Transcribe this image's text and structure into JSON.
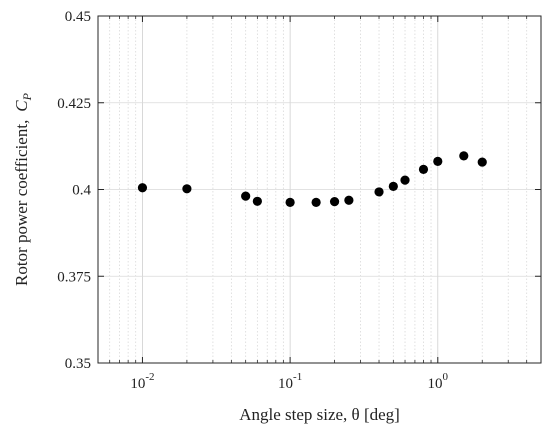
{
  "chart_data": {
    "type": "scatter",
    "xlabel": "Angle step size, θ [deg]",
    "ylabel": "Rotor power coefficient,  C_P",
    "ylabel_main": "Rotor power coefficient,",
    "ylabel_symbol": "C",
    "ylabel_subscript": "P",
    "x_scale": "log",
    "xlim": [
      0.005,
      5
    ],
    "ylim": [
      0.35,
      0.45
    ],
    "grid": true,
    "x_ticks": [
      {
        "value": 0.01,
        "base": "10",
        "exp": "-2"
      },
      {
        "value": 0.1,
        "base": "10",
        "exp": "-1"
      },
      {
        "value": 1,
        "base": "10",
        "exp": "0"
      }
    ],
    "y_ticks": [
      {
        "value": 0.35,
        "label": "0.35"
      },
      {
        "value": 0.375,
        "label": "0.375"
      },
      {
        "value": 0.4,
        "label": "0.4"
      },
      {
        "value": 0.425,
        "label": "0.425"
      },
      {
        "value": 0.45,
        "label": "0.45"
      }
    ],
    "series": [
      {
        "color": "#000000",
        "points": [
          {
            "x": 0.01,
            "y": 0.4005
          },
          {
            "x": 0.02,
            "y": 0.4002
          },
          {
            "x": 0.05,
            "y": 0.3981
          },
          {
            "x": 0.06,
            "y": 0.3966
          },
          {
            "x": 0.1,
            "y": 0.3963
          },
          {
            "x": 0.15,
            "y": 0.3963
          },
          {
            "x": 0.2,
            "y": 0.3965
          },
          {
            "x": 0.25,
            "y": 0.3969
          },
          {
            "x": 0.4,
            "y": 0.3993
          },
          {
            "x": 0.5,
            "y": 0.4009
          },
          {
            "x": 0.6,
            "y": 0.4027
          },
          {
            "x": 0.8,
            "y": 0.4058
          },
          {
            "x": 1.0,
            "y": 0.4081
          },
          {
            "x": 1.5,
            "y": 0.4097
          },
          {
            "x": 2.0,
            "y": 0.4079
          }
        ]
      }
    ]
  }
}
